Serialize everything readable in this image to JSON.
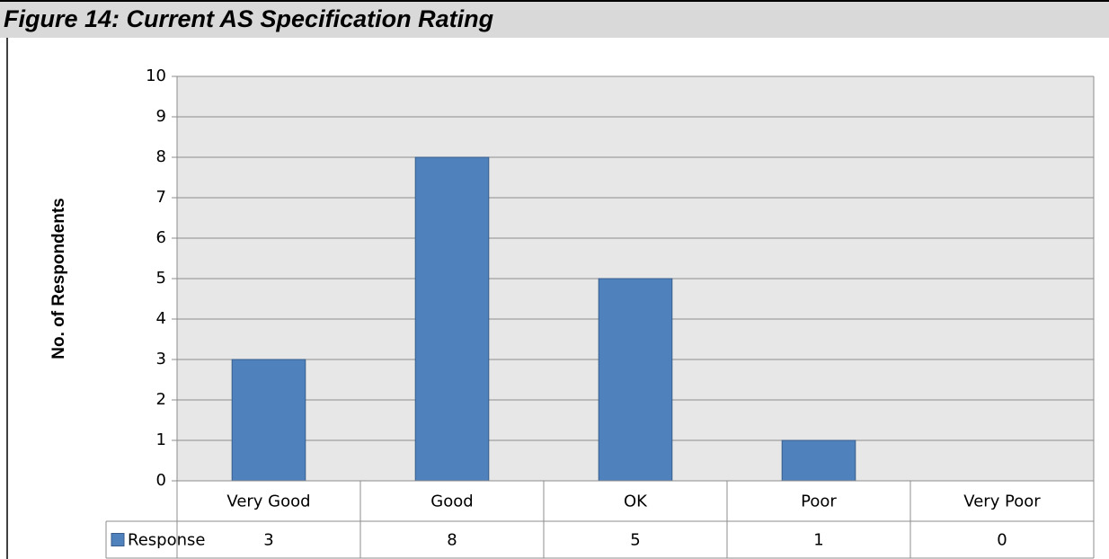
{
  "chart_data": {
    "type": "bar",
    "title": "Figure 14:  Current AS Specification Rating",
    "y_label": "No. of Respondents",
    "categories": [
      "Very Good",
      "Good",
      "OK",
      "Poor",
      "Very Poor"
    ],
    "series": [
      {
        "name": "Response",
        "color": "#4f81bd",
        "values": [
          3,
          8,
          5,
          1,
          0
        ]
      }
    ],
    "ylim": [
      0,
      10
    ],
    "yticks": [
      0,
      1,
      2,
      3,
      4,
      5,
      6,
      7,
      8,
      9,
      10
    ],
    "grid": true,
    "data_table": true
  }
}
